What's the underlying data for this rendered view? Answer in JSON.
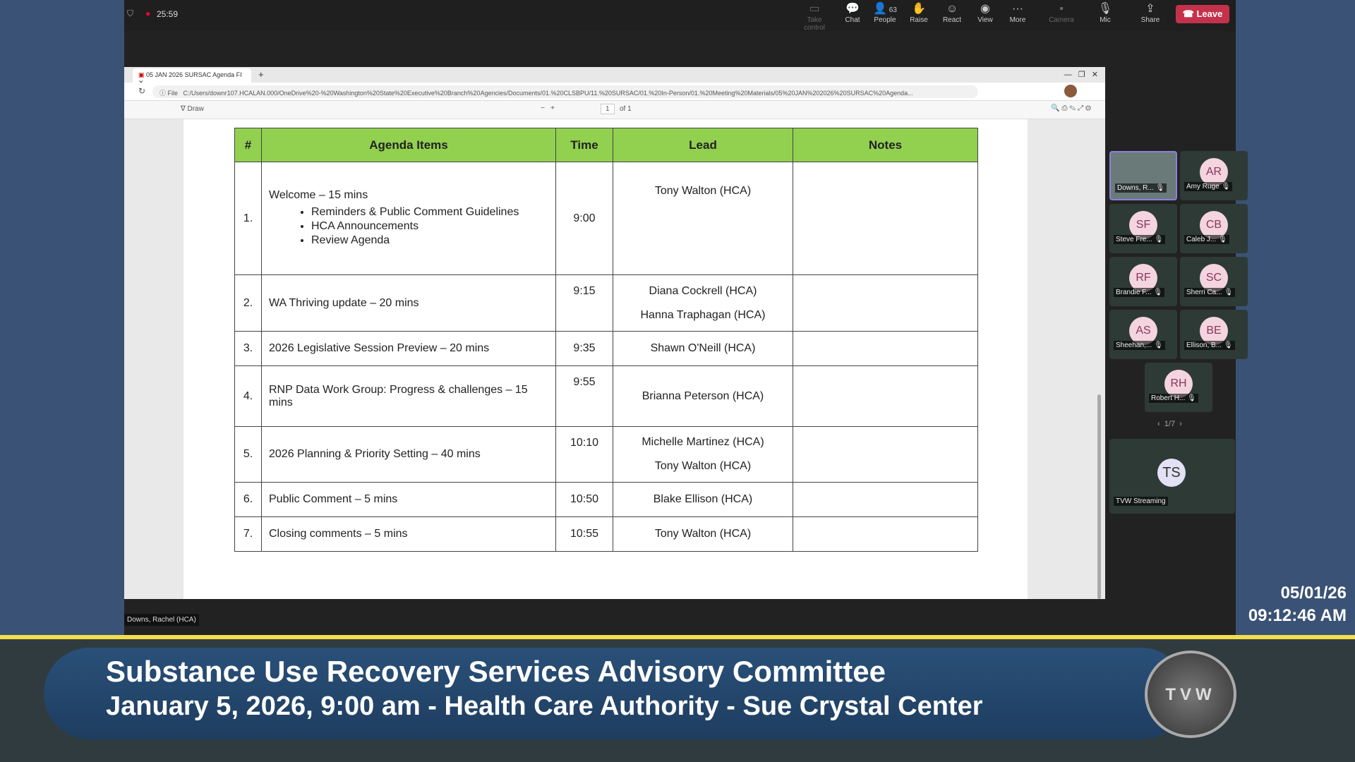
{
  "meeting": {
    "timer": "25:59",
    "toolbar": [
      {
        "label": "Take control",
        "icon": "screen-icon",
        "dim": true
      },
      {
        "label": "Chat",
        "icon": "chat-icon"
      },
      {
        "label": "People",
        "icon": "people-icon",
        "badge": "63"
      },
      {
        "label": "Raise",
        "icon": "hand-icon"
      },
      {
        "label": "React",
        "icon": "smile-icon"
      },
      {
        "label": "View",
        "icon": "view-icon"
      },
      {
        "label": "More",
        "icon": "more-icon"
      },
      {
        "label": "Camera",
        "icon": "camera-off-icon",
        "dim": true
      },
      {
        "label": "Mic",
        "icon": "mic-off-icon"
      },
      {
        "label": "Share",
        "icon": "share-icon"
      }
    ],
    "leave": "Leave",
    "presenter": "Downs, Rachel (HCA)"
  },
  "browser": {
    "tab": "05 JAN 2026 SURSAC Agenda FI",
    "file_label": "File",
    "url": "C:/Users/downr107.HCALAN.000/OneDrive%20-%20Washington%20State%20Executive%20Branch%20Agencies/Documents/01.%20CLSBPU/11.%20SURSAC/01.%20In-Person/01.%20Meeting%20Materials/05%20JAN%202026%20SURSAC%20Agenda...",
    "pdf": {
      "draw": "Draw",
      "page": "1",
      "of": "of 1"
    }
  },
  "agenda": {
    "headers": [
      "#",
      "Agenda Items",
      "Time",
      "Lead",
      "Notes"
    ],
    "rows": [
      {
        "num": "1.",
        "item": "Welcome – 15 mins",
        "bullets": [
          "Reminders & Public Comment Guidelines",
          "HCA Announcements",
          "Review Agenda"
        ],
        "time": "9:00",
        "leads": [
          "Tony Walton (HCA)"
        ]
      },
      {
        "num": "2.",
        "item": "WA Thriving update – 20 mins",
        "time": "9:15",
        "leads": [
          "Diana Cockrell (HCA)",
          "Hanna Traphagan (HCA)"
        ]
      },
      {
        "num": "3.",
        "item": "2026 Legislative Session Preview – 20 mins",
        "time": "9:35",
        "leads": [
          "Shawn O'Neill (HCA)"
        ]
      },
      {
        "num": "4.",
        "item": "RNP Data Work Group: Progress & challenges – 15 mins",
        "time": "9:55",
        "leads": [
          "Brianna Peterson (HCA)"
        ]
      },
      {
        "num": "5.",
        "item": "2026 Planning & Priority Setting – 40 mins",
        "time": "10:10",
        "leads": [
          "Michelle Martinez (HCA)",
          "Tony Walton (HCA)"
        ]
      },
      {
        "num": "6.",
        "item": "Public Comment – 5 mins",
        "time": "10:50",
        "leads": [
          "Blake Ellison (HCA)"
        ]
      },
      {
        "num": "7.",
        "item": "Closing comments – 5 mins",
        "time": "10:55",
        "leads": [
          "Tony Walton (HCA)"
        ]
      }
    ]
  },
  "participants": [
    {
      "initials": "",
      "name": "Downs, R..."
    },
    {
      "initials": "AR",
      "name": "Amy Ruge"
    },
    {
      "initials": "SF",
      "name": "Steve Fre..."
    },
    {
      "initials": "CB",
      "name": "Caleb J..."
    },
    {
      "initials": "RF",
      "name": "Brandie F..."
    },
    {
      "initials": "SC",
      "name": "Sherri Ca..."
    },
    {
      "initials": "AS",
      "name": "Sheehan,..."
    },
    {
      "initials": "BE",
      "name": "Ellison, B..."
    },
    {
      "initials": "RH",
      "name": "Robert H..."
    }
  ],
  "pager": "1/7",
  "streaming": {
    "initials": "TS",
    "name": "TVW Streaming"
  },
  "stamp": {
    "date": "05/01/26",
    "time": "09:12:46 AM"
  },
  "banner": {
    "title": "Substance Use Recovery Services Advisory Committee",
    "subtitle": "January 5, 2026, 9:00 am - Health Care Authority - Sue Crystal Center",
    "logo": "TVW"
  },
  "colors": {
    "header_green": "#92d050",
    "leave_red": "#c4314b",
    "banner_blue": "#2a5078",
    "accent_yellow": "#f2de4a"
  }
}
